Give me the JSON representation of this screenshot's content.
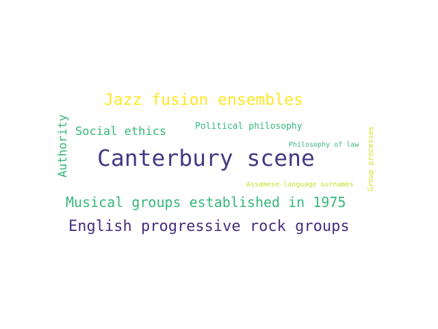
{
  "words": [
    {
      "id": "jazz-fusion-ensembles",
      "text": "Jazz fusion ensembles",
      "color": "#fde725"
    },
    {
      "id": "social-ethics",
      "text": "Social ethics",
      "color": "#35b779"
    },
    {
      "id": "political-philosophy",
      "text": "Political philosophy",
      "color": "#35b779"
    },
    {
      "id": "authority",
      "text": "Authority",
      "color": "#35b779",
      "orientation": "vertical"
    },
    {
      "id": "canterbury-scene",
      "text": "Canterbury scene",
      "color": "#443983"
    },
    {
      "id": "philosophy-of-law",
      "text": "Philosophy of law",
      "color": "#35b779"
    },
    {
      "id": "group-processes",
      "text": "Group processes",
      "color": "#d5e21a",
      "orientation": "vertical"
    },
    {
      "id": "assamese-language-surnames",
      "text": "Assamese-language surnames",
      "color": "#c2df23"
    },
    {
      "id": "musical-groups-established-in-1975",
      "text": "Musical groups established in 1975",
      "color": "#35b779"
    },
    {
      "id": "english-progressive-rock-groups",
      "text": "English progressive rock groups",
      "color": "#472d7b"
    }
  ]
}
